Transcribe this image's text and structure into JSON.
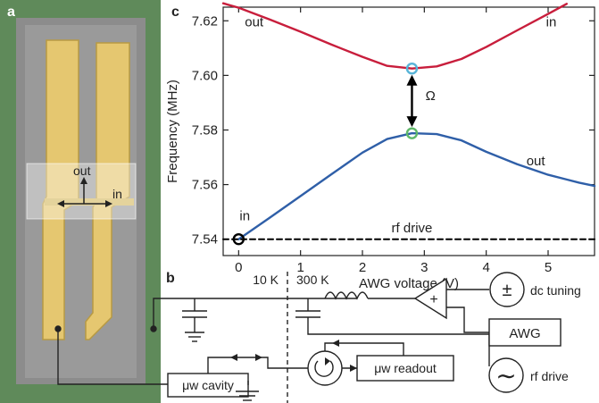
{
  "panels": {
    "a": "a",
    "b": "b",
    "c": "c"
  },
  "micrograph": {
    "label_out": "out",
    "label_in": "in"
  },
  "chart_data": {
    "type": "line",
    "xlabel": "AWG voltage (V)",
    "ylabel": "Frequency (MHz)",
    "xlim": [
      -0.25,
      5.75
    ],
    "ylim": [
      7.534,
      7.625
    ],
    "xticks": [
      0,
      1,
      2,
      3,
      4,
      5
    ],
    "yticks": [
      7.54,
      7.56,
      7.58,
      7.6,
      7.62
    ],
    "ytick_labels": [
      "7.54",
      "7.56",
      "7.58",
      "7.60",
      "7.62"
    ],
    "grid": false,
    "series": [
      {
        "color": "#c81e3c",
        "x": [
          -0.25,
          0,
          0.5,
          1,
          1.5,
          2,
          2.4,
          2.8,
          3.2,
          3.6,
          4,
          4.5,
          5,
          5.3
        ],
        "y": [
          7.6264,
          7.6248,
          7.6205,
          7.616,
          7.6113,
          7.6068,
          7.6035,
          7.6025,
          7.6033,
          7.606,
          7.6104,
          7.6165,
          7.6225,
          7.6262
        ]
      },
      {
        "color": "#2f5fa8",
        "x": [
          0,
          0.5,
          1,
          1.5,
          2,
          2.4,
          2.8,
          3.2,
          3.6,
          4,
          4.5,
          5,
          5.5,
          5.75
        ],
        "y": [
          7.54,
          7.5478,
          7.5558,
          7.5638,
          7.5717,
          7.5767,
          7.5788,
          7.5785,
          7.5762,
          7.572,
          7.5675,
          7.5636,
          7.5607,
          7.5595
        ]
      },
      {
        "color": "#000000",
        "style": "dashed",
        "x": [
          -0.25,
          5.75
        ],
        "y": [
          7.54,
          7.54
        ]
      }
    ],
    "annotations": [
      {
        "text": "out",
        "x": 0.25,
        "y": 7.618
      },
      {
        "text": "in",
        "x": 5.05,
        "y": 7.618
      },
      {
        "text": "Ω",
        "x": 3.1,
        "y": 7.591
      },
      {
        "text": "out",
        "x": 4.8,
        "y": 7.567
      },
      {
        "text": "in",
        "x": 0.1,
        "y": 7.547
      },
      {
        "text": "rf drive",
        "x": 2.8,
        "y": 7.5425
      }
    ],
    "markers": [
      {
        "x": 2.8,
        "y": 7.6025,
        "color": "#58b4d8"
      },
      {
        "x": 2.8,
        "y": 7.5788,
        "color": "#5fb86a"
      },
      {
        "x": 0,
        "y": 7.54,
        "color": "#000000"
      }
    ]
  },
  "circuit": {
    "temp_low": "10 K",
    "temp_high": "300 K",
    "dc_tuning": "dc tuning",
    "awg": "AWG",
    "rf_drive": "rf drive",
    "uw_cavity": "μw cavity",
    "uw_readout": "μw readout",
    "plus_minus": "±",
    "plus": "+",
    "sine": "∼"
  }
}
